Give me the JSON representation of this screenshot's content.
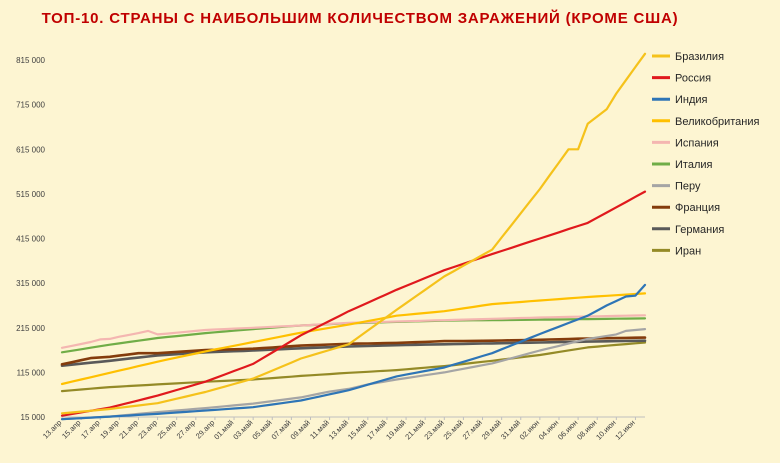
{
  "chart_data": {
    "type": "line",
    "title": "ТОП-10. СТРАНЫ С НАИБОЛЬШИМ КОЛИЧЕСТВОМ ЗАРАЖЕНИЙ (КРОМЕ США)",
    "xlabel": "",
    "ylabel": "",
    "ylim": [
      15000,
      815000
    ],
    "yticks": [
      15000,
      115000,
      215000,
      315000,
      415000,
      515000,
      615000,
      715000,
      815000
    ],
    "ytick_labels": [
      "15 000",
      "115 000",
      "215 000",
      "315 000",
      "415 000",
      "515 000",
      "615 000",
      "715 000",
      "815 000"
    ],
    "grid": false,
    "legend_position": "right",
    "x": [
      "13.апр",
      "14.апр",
      "15.апр",
      "16.апр",
      "17.апр",
      "18.апр",
      "19.апр",
      "20.апр",
      "21.апр",
      "22.апр",
      "23.апр",
      "24.апр",
      "25.апр",
      "26.апр",
      "27.апр",
      "28.апр",
      "29.апр",
      "30.апр",
      "01.май",
      "02.май",
      "03.май",
      "04.май",
      "05.май",
      "06.май",
      "07.май",
      "08.май",
      "09.май",
      "10.май",
      "11.май",
      "12.май",
      "13.май",
      "14.май",
      "15.май",
      "16.май",
      "17.май",
      "18.май",
      "19.май",
      "20.май",
      "21.май",
      "22.май",
      "23.май",
      "24.май",
      "25.май",
      "26.май",
      "27.май",
      "28.май",
      "29.май",
      "30.май",
      "31.май",
      "01.июн",
      "02.июн",
      "03.июн",
      "04.июн",
      "05.июн",
      "06.июн",
      "07.июн",
      "08.июн",
      "09.июн",
      "10.июн",
      "11.июн",
      "12.июн",
      "13.июн"
    ],
    "xtick_labels": [
      "13.апр",
      "15.апр",
      "17.апр",
      "19.апр",
      "21.апр",
      "23.апр",
      "25.апр",
      "27.апр",
      "29.апр",
      "01.май",
      "03.май",
      "05.май",
      "07.май",
      "09.май",
      "11.май",
      "13.май",
      "15.май",
      "17.май",
      "19.май",
      "21.май",
      "23.май",
      "25.май",
      "27.май",
      "29.май",
      "31.май",
      "02.июн",
      "04.июн",
      "06.июн",
      "08.июн",
      "10.июн",
      "12.июн"
    ],
    "series": [
      {
        "name": "Бразилия",
        "color": "#f5c21b",
        "width": 2.2,
        "anchors": [
          [
            0,
            23000
          ],
          [
            5,
            33000
          ],
          [
            10,
            46000
          ],
          [
            15,
            71000
          ],
          [
            20,
            101000
          ],
          [
            25,
            146000
          ],
          [
            30,
            178000
          ],
          [
            35,
            255000
          ],
          [
            40,
            330000
          ],
          [
            45,
            390000
          ],
          [
            50,
            526000
          ],
          [
            53,
            615000
          ],
          [
            54,
            615000
          ],
          [
            55,
            672000
          ],
          [
            57,
            705000
          ],
          [
            58,
            740000
          ],
          [
            61,
            829000
          ]
        ]
      },
      {
        "name": "Россия",
        "color": "#e0191d",
        "width": 2.2,
        "anchors": [
          [
            0,
            18000
          ],
          [
            5,
            36000
          ],
          [
            10,
            63000
          ],
          [
            15,
            94000
          ],
          [
            20,
            134000
          ],
          [
            25,
            198000
          ],
          [
            30,
            252000
          ],
          [
            35,
            300000
          ],
          [
            40,
            344000
          ],
          [
            45,
            380000
          ],
          [
            50,
            415000
          ],
          [
            55,
            450000
          ],
          [
            61,
            520000
          ]
        ]
      },
      {
        "name": "Индия",
        "color": "#2e75b6",
        "width": 2.2,
        "anchors": [
          [
            0,
            10000
          ],
          [
            10,
            22000
          ],
          [
            20,
            37000
          ],
          [
            25,
            52000
          ],
          [
            30,
            75000
          ],
          [
            35,
            106000
          ],
          [
            40,
            126000
          ],
          [
            45,
            158000
          ],
          [
            50,
            201000
          ],
          [
            55,
            242000
          ],
          [
            57,
            265000
          ],
          [
            59,
            285000
          ],
          [
            60,
            287000
          ],
          [
            61,
            311000
          ]
        ]
      },
      {
        "name": "Великобритания",
        "color": "#ffc000",
        "width": 2.2,
        "anchors": [
          [
            0,
            89000
          ],
          [
            5,
            114000
          ],
          [
            10,
            139000
          ],
          [
            15,
            162000
          ],
          [
            20,
            183000
          ],
          [
            25,
            204000
          ],
          [
            30,
            222000
          ],
          [
            35,
            242000
          ],
          [
            40,
            252000
          ],
          [
            45,
            268000
          ],
          [
            50,
            276000
          ],
          [
            55,
            284000
          ],
          [
            61,
            292000
          ]
        ]
      },
      {
        "name": "Испания",
        "color": "#f4b6b1",
        "width": 2.2,
        "anchors": [
          [
            0,
            170000
          ],
          [
            3,
            183000
          ],
          [
            4,
            189000
          ],
          [
            5,
            190000
          ],
          [
            6,
            195000
          ],
          [
            8,
            203000
          ],
          [
            9,
            208000
          ],
          [
            10,
            200000
          ],
          [
            15,
            210000
          ],
          [
            20,
            215000
          ],
          [
            25,
            220000
          ],
          [
            30,
            226000
          ],
          [
            40,
            232000
          ],
          [
            50,
            238000
          ],
          [
            61,
            243000
          ]
        ]
      },
      {
        "name": "Италия",
        "color": "#70ad47",
        "width": 2.2,
        "anchors": [
          [
            0,
            160000
          ],
          [
            5,
            177000
          ],
          [
            10,
            192000
          ],
          [
            15,
            203000
          ],
          [
            20,
            212000
          ],
          [
            25,
            220000
          ],
          [
            30,
            225000
          ],
          [
            35,
            228000
          ],
          [
            40,
            231000
          ],
          [
            50,
            233000
          ],
          [
            61,
            236000
          ]
        ]
      },
      {
        "name": "Перу",
        "color": "#a5a5a5",
        "width": 2.2,
        "anchors": [
          [
            0,
            10000
          ],
          [
            5,
            16000
          ],
          [
            10,
            26000
          ],
          [
            15,
            35000
          ],
          [
            20,
            45000
          ],
          [
            25,
            59000
          ],
          [
            28,
            72000
          ],
          [
            30,
            78000
          ],
          [
            32,
            88000
          ],
          [
            35,
            99000
          ],
          [
            40,
            115000
          ],
          [
            45,
            135000
          ],
          [
            50,
            164000
          ],
          [
            55,
            190000
          ],
          [
            58,
            200000
          ],
          [
            59,
            208000
          ],
          [
            61,
            212000
          ]
        ]
      },
      {
        "name": "Франция",
        "color": "#843c0c",
        "width": 2.6,
        "anchors": [
          [
            0,
            133000
          ],
          [
            3,
            147000
          ],
          [
            5,
            150000
          ],
          [
            8,
            158000
          ],
          [
            10,
            158000
          ],
          [
            15,
            165000
          ],
          [
            20,
            168000
          ],
          [
            25,
            175000
          ],
          [
            30,
            179000
          ],
          [
            35,
            181000
          ],
          [
            40,
            185000
          ],
          [
            45,
            186000
          ],
          [
            50,
            188000
          ],
          [
            55,
            191000
          ],
          [
            61,
            193000
          ]
        ]
      },
      {
        "name": "Германия",
        "color": "#595959",
        "width": 2.6,
        "anchors": [
          [
            0,
            130000
          ],
          [
            5,
            141000
          ],
          [
            10,
            153000
          ],
          [
            15,
            160000
          ],
          [
            20,
            164000
          ],
          [
            25,
            169000
          ],
          [
            30,
            173000
          ],
          [
            35,
            176000
          ],
          [
            40,
            178000
          ],
          [
            45,
            180000
          ],
          [
            50,
            182000
          ],
          [
            55,
            184000
          ],
          [
            61,
            186000
          ]
        ]
      },
      {
        "name": "Иран",
        "color": "#948a27",
        "width": 2.2,
        "anchors": [
          [
            0,
            73000
          ],
          [
            5,
            82000
          ],
          [
            10,
            88000
          ],
          [
            15,
            94000
          ],
          [
            20,
            99000
          ],
          [
            25,
            107000
          ],
          [
            30,
            114000
          ],
          [
            35,
            120000
          ],
          [
            40,
            129000
          ],
          [
            45,
            141000
          ],
          [
            50,
            154000
          ],
          [
            55,
            171000
          ],
          [
            61,
            182000
          ]
        ]
      }
    ]
  }
}
